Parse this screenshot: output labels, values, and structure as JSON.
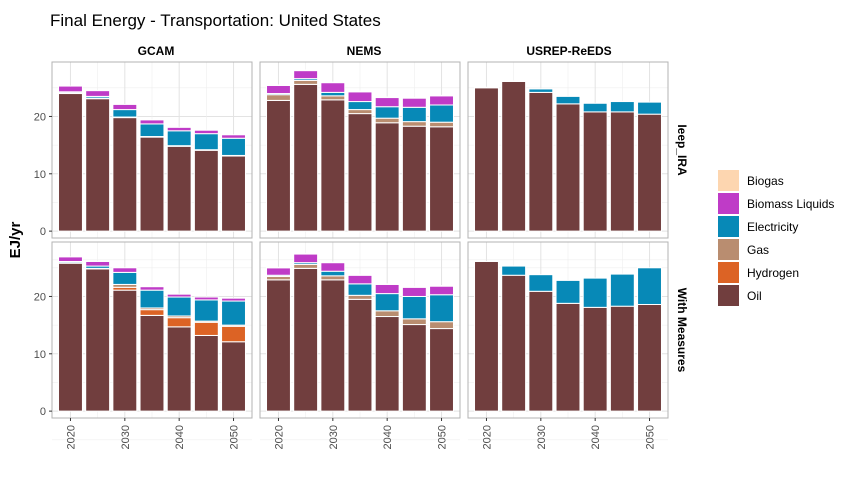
{
  "chart_data": {
    "type": "bar",
    "stacked": true,
    "title": "Final Energy - Transportation: United States",
    "ylabel": "EJ/yr",
    "xlabel": "",
    "x": [
      2020,
      2025,
      2030,
      2035,
      2040,
      2045,
      2050
    ],
    "x_ticks": [
      "2020",
      "2030",
      "2040",
      "2050"
    ],
    "y_ticks": [
      "0",
      "10",
      "20"
    ],
    "ylim": [
      -1.2,
      29.5
    ],
    "grid": true,
    "legend_position": "right",
    "columns": [
      "GCAM",
      "NEMS",
      "USREP-ReEDS"
    ],
    "rows": [
      "Ieep_IRA",
      "With Measures"
    ],
    "series_order": [
      "Oil",
      "Hydrogen",
      "Gas",
      "Electricity",
      "Biomass Liquids",
      "Biogas"
    ],
    "legend": [
      {
        "name": "Biogas",
        "color": "#FDD6B0"
      },
      {
        "name": "Biomass Liquids",
        "color": "#BF3BC7"
      },
      {
        "name": "Electricity",
        "color": "#0789B7"
      },
      {
        "name": "Gas",
        "color": "#B98D70"
      },
      {
        "name": "Hydrogen",
        "color": "#DC6325"
      },
      {
        "name": "Oil",
        "color": "#713E3E"
      }
    ],
    "panels": [
      {
        "column": "GCAM",
        "row": "Ieep_IRA",
        "series": {
          "Oil": [
            24.0,
            23.1,
            19.8,
            16.4,
            14.8,
            14.1,
            13.1
          ],
          "Hydrogen": [
            0,
            0,
            0,
            0,
            0,
            0,
            0
          ],
          "Gas": [
            0.1,
            0.1,
            0.1,
            0.1,
            0.1,
            0.1,
            0.1
          ],
          "Electricity": [
            0.2,
            0.3,
            1.3,
            2.2,
            2.6,
            2.8,
            3.0
          ],
          "Biomass Liquids": [
            1.0,
            1.0,
            0.9,
            0.7,
            0.6,
            0.6,
            0.6
          ],
          "Biogas": [
            0,
            0,
            0,
            0,
            0,
            0,
            0
          ]
        }
      },
      {
        "column": "NEMS",
        "row": "Ieep_IRA",
        "series": {
          "Oil": [
            22.8,
            25.6,
            22.9,
            20.5,
            18.9,
            18.3,
            18.2
          ],
          "Hydrogen": [
            0,
            0,
            0,
            0,
            0,
            0,
            0
          ],
          "Gas": [
            1.0,
            0.7,
            0.7,
            0.7,
            0.8,
            0.8,
            0.8
          ],
          "Electricity": [
            0.2,
            0.3,
            0.6,
            1.4,
            2.0,
            2.5,
            3.0
          ],
          "Biomass Liquids": [
            1.4,
            1.4,
            1.7,
            1.7,
            1.6,
            1.6,
            1.6
          ],
          "Biogas": [
            0.1,
            0.1,
            0.1,
            0.1,
            0.1,
            0.1,
            0.1
          ]
        }
      },
      {
        "column": "USREP-ReEDS",
        "row": "Ieep_IRA",
        "series": {
          "Oil": [
            25.0,
            26.1,
            24.2,
            22.2,
            20.8,
            20.8,
            20.4
          ],
          "Hydrogen": [
            0,
            0,
            0,
            0,
            0,
            0,
            0
          ],
          "Gas": [
            0,
            0,
            0,
            0,
            0,
            0,
            0
          ],
          "Electricity": [
            0.1,
            0.1,
            0.6,
            1.3,
            1.5,
            1.8,
            2.1
          ],
          "Biomass Liquids": [
            0,
            0,
            0,
            0,
            0,
            0,
            0
          ],
          "Biogas": [
            0,
            0,
            0,
            0,
            0,
            0,
            0
          ]
        }
      },
      {
        "column": "GCAM",
        "row": "With Measures",
        "series": {
          "Oil": [
            25.8,
            24.8,
            21.1,
            16.7,
            14.7,
            13.2,
            12.1
          ],
          "Hydrogen": [
            0,
            0,
            0.5,
            1.0,
            1.6,
            2.3,
            2.7
          ],
          "Gas": [
            0.1,
            0.1,
            0.5,
            0.3,
            0.3,
            0.2,
            0.2
          ],
          "Electricity": [
            0.2,
            0.4,
            2.1,
            3.1,
            3.3,
            3.7,
            4.2
          ],
          "Biomass Liquids": [
            0.8,
            0.8,
            0.8,
            0.6,
            0.5,
            0.5,
            0.5
          ],
          "Biogas": [
            0,
            0,
            0,
            0,
            0,
            0,
            0
          ]
        }
      },
      {
        "column": "NEMS",
        "row": "With Measures",
        "series": {
          "Oil": [
            22.9,
            24.9,
            22.9,
            19.5,
            16.5,
            15.1,
            14.4
          ],
          "Hydrogen": [
            0,
            0,
            0,
            0,
            0,
            0,
            0
          ],
          "Gas": [
            0.6,
            0.7,
            0.7,
            0.7,
            1.0,
            1.0,
            1.2
          ],
          "Electricity": [
            0.2,
            0.3,
            0.8,
            2.0,
            3.0,
            3.9,
            4.7
          ],
          "Biomass Liquids": [
            1.3,
            1.5,
            1.5,
            1.5,
            1.6,
            1.6,
            1.5
          ],
          "Biogas": [
            0.1,
            0.1,
            0.1,
            0.1,
            0.1,
            0.1,
            0.1
          ]
        }
      },
      {
        "column": "USREP-ReEDS",
        "row": "With Measures",
        "series": {
          "Oil": [
            26.1,
            23.7,
            20.9,
            18.8,
            18.1,
            18.3,
            18.6
          ],
          "Hydrogen": [
            0,
            0,
            0,
            0,
            0,
            0,
            0
          ],
          "Gas": [
            0,
            0,
            0,
            0,
            0,
            0,
            0
          ],
          "Electricity": [
            0,
            1.6,
            2.9,
            4.0,
            5.1,
            5.6,
            6.4
          ],
          "Biomass Liquids": [
            0,
            0,
            0,
            0,
            0,
            0,
            0
          ],
          "Biogas": [
            0,
            0,
            0,
            0,
            0,
            0,
            0
          ]
        }
      }
    ]
  }
}
